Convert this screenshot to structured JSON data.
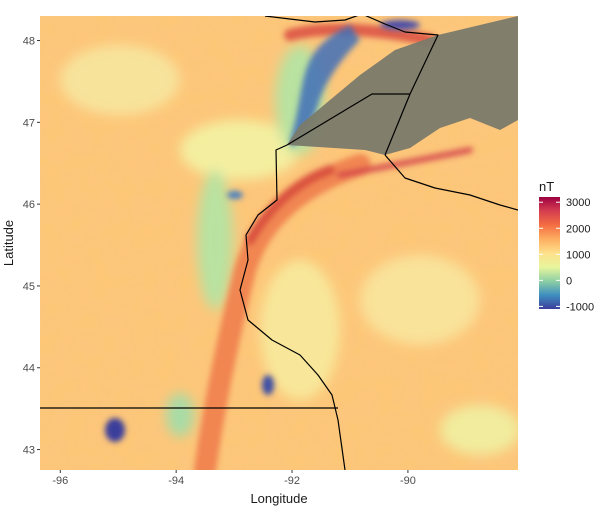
{
  "map": {
    "xlabel": "Longitude",
    "ylabel": "Latitude",
    "x_ticks": [
      {
        "value": -96,
        "label": "-96"
      },
      {
        "value": -94,
        "label": "-94"
      },
      {
        "value": -92,
        "label": "-92"
      },
      {
        "value": -90,
        "label": "-90"
      }
    ],
    "y_ticks": [
      {
        "value": 43,
        "label": "43"
      },
      {
        "value": 44,
        "label": "44"
      },
      {
        "value": 45,
        "label": "45"
      },
      {
        "value": 46,
        "label": "46"
      },
      {
        "value": 47,
        "label": "47"
      },
      {
        "value": 48,
        "label": "48"
      }
    ],
    "xlim": [
      -96.35,
      -88.1
    ],
    "ylim": [
      42.75,
      48.3
    ],
    "lake_color": "#7a7a6a",
    "border_color": "#000000"
  },
  "legend": {
    "title": "nT",
    "range": [
      -1100,
      3200
    ],
    "ticks": [
      {
        "value": 3000,
        "label": "3000"
      },
      {
        "value": 2000,
        "label": "2000"
      },
      {
        "value": 1000,
        "label": "1000"
      },
      {
        "value": 0,
        "label": "0"
      },
      {
        "value": -1000,
        "label": "-1000"
      }
    ],
    "colors": [
      "#3b3e9b",
      "#3f8fc0",
      "#8ed0a4",
      "#e8f59c",
      "#fee08b",
      "#fdae61",
      "#f46d43",
      "#d53e4f",
      "#9e0142"
    ]
  }
}
